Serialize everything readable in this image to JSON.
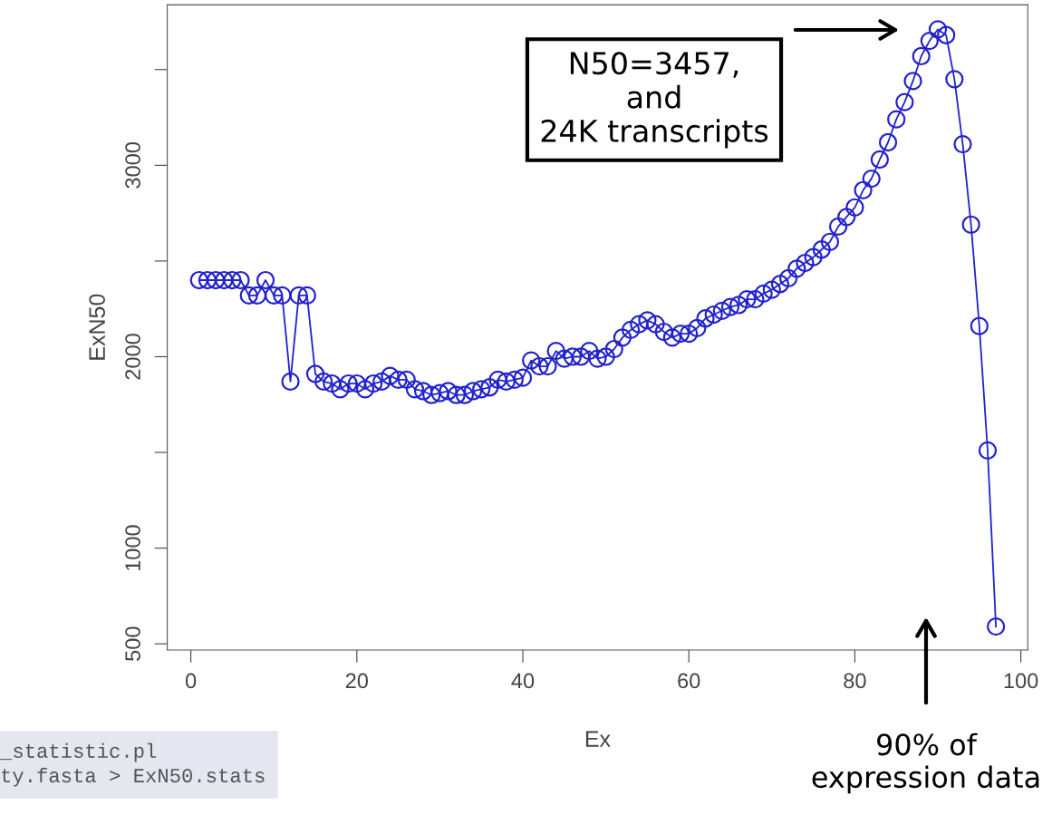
{
  "chart_data": {
    "type": "line",
    "xlabel": "Ex",
    "ylabel": "ExN50",
    "x": [
      1,
      2,
      3,
      4,
      5,
      6,
      7,
      8,
      9,
      10,
      11,
      12,
      13,
      14,
      15,
      16,
      17,
      18,
      19,
      20,
      21,
      22,
      23,
      24,
      25,
      26,
      27,
      28,
      29,
      30,
      31,
      32,
      33,
      34,
      35,
      36,
      37,
      38,
      39,
      40,
      41,
      42,
      43,
      44,
      45,
      46,
      47,
      48,
      49,
      50,
      51,
      52,
      53,
      54,
      55,
      56,
      57,
      58,
      59,
      60,
      61,
      62,
      63,
      64,
      65,
      66,
      67,
      68,
      69,
      70,
      71,
      72,
      73,
      74,
      75,
      76,
      77,
      78,
      79,
      80,
      81,
      82,
      83,
      84,
      85,
      86,
      87,
      88,
      89,
      90,
      91,
      92,
      93,
      94,
      95,
      96,
      97
    ],
    "series": [
      {
        "color": "#2222cc",
        "values": [
          2400,
          2400,
          2400,
          2400,
          2400,
          2400,
          2320,
          2320,
          2400,
          2320,
          2320,
          1870,
          2320,
          2320,
          1910,
          1870,
          1860,
          1830,
          1860,
          1860,
          1830,
          1860,
          1870,
          1900,
          1880,
          1880,
          1830,
          1820,
          1800,
          1810,
          1820,
          1800,
          1800,
          1820,
          1830,
          1840,
          1880,
          1870,
          1880,
          1890,
          1980,
          1950,
          1950,
          2030,
          1990,
          2000,
          2000,
          2030,
          1990,
          2000,
          2040,
          2100,
          2140,
          2170,
          2190,
          2170,
          2130,
          2100,
          2120,
          2120,
          2150,
          2200,
          2220,
          2240,
          2260,
          2270,
          2300,
          2300,
          2330,
          2350,
          2380,
          2410,
          2460,
          2490,
          2520,
          2560,
          2600,
          2680,
          2730,
          2780,
          2870,
          2930,
          3030,
          3120,
          3240,
          3330,
          3440,
          3570,
          3650,
          3710,
          3680,
          3450,
          3110,
          2690,
          2160,
          1510,
          590
        ]
      }
    ],
    "marker": "circle",
    "xlim": [
      -2.84,
      100.84
    ],
    "xticks": [
      0,
      20,
      40,
      60,
      80,
      100
    ],
    "ylim": [
      468,
      3838
    ],
    "yticks": [
      500,
      1000,
      {
        "value": 1500,
        "label": null
      },
      2000,
      {
        "value": 2500,
        "label": null
      },
      3000,
      {
        "value": 3500,
        "label": null
      }
    ],
    "grid": false,
    "legend": false,
    "annotations": [
      "N50=3457,\nand\n24K transcripts",
      "90% of\nexpression data",
      "_statistic.pl\nty.fasta > ExN50.stats"
    ]
  }
}
